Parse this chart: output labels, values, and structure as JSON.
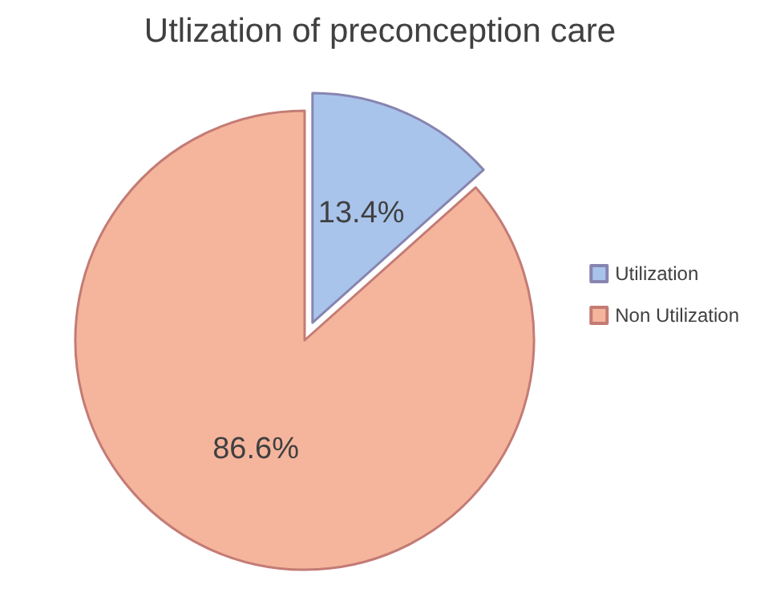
{
  "chart_data": {
    "type": "pie",
    "title": "Utlization of preconception care",
    "categories": [
      "Utilization",
      "Non Utilization"
    ],
    "values": [
      13.4,
      86.6
    ],
    "colors": [
      "#a9c4eb",
      "#f5b59c"
    ],
    "value_labels": [
      "13.4%",
      "86.6%"
    ],
    "legend": "right"
  }
}
